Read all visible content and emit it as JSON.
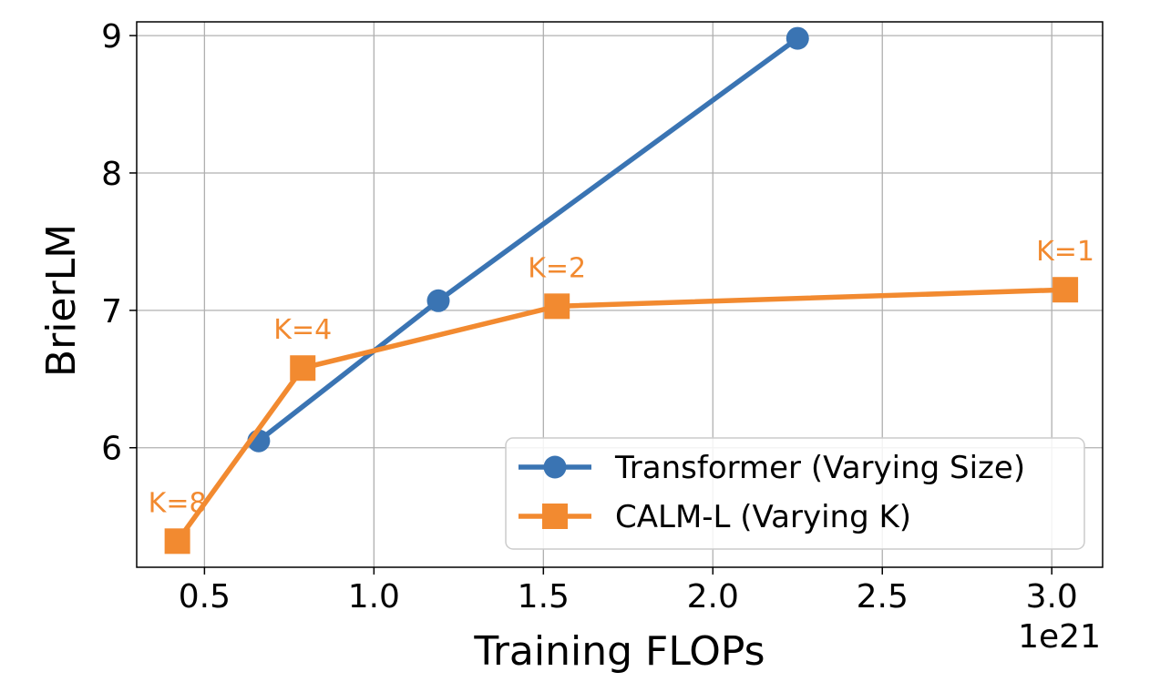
{
  "chart_data": {
    "type": "line",
    "xlabel": "Training FLOPs",
    "ylabel": "BrierLM",
    "x_offset_label": "1e21",
    "xlim": [
      0.3,
      3.15
    ],
    "ylim": [
      5.13,
      9.1
    ],
    "xticks": [
      0.5,
      1.0,
      1.5,
      2.0,
      2.5,
      3.0
    ],
    "xtick_labels": [
      "0.5",
      "1.0",
      "1.5",
      "2.0",
      "2.5",
      "3.0"
    ],
    "yticks": [
      6,
      7,
      8,
      9
    ],
    "ytick_labels": [
      "6",
      "7",
      "8",
      "9"
    ],
    "grid": true,
    "legend_position": "bottom-right",
    "series": [
      {
        "name": "Transformer (Varying Size)",
        "marker": "circle",
        "color": "#3a74b3",
        "x": [
          0.66,
          1.19,
          2.25
        ],
        "y": [
          6.05,
          7.07,
          8.98
        ]
      },
      {
        "name": "CALM-L (Varying K)",
        "marker": "square",
        "color": "#f28a30",
        "x": [
          0.42,
          0.79,
          1.54,
          3.04
        ],
        "y": [
          5.32,
          6.58,
          7.03,
          7.15
        ],
        "point_labels": [
          "K=8",
          "K=4",
          "K=2",
          "K=1"
        ]
      }
    ]
  }
}
